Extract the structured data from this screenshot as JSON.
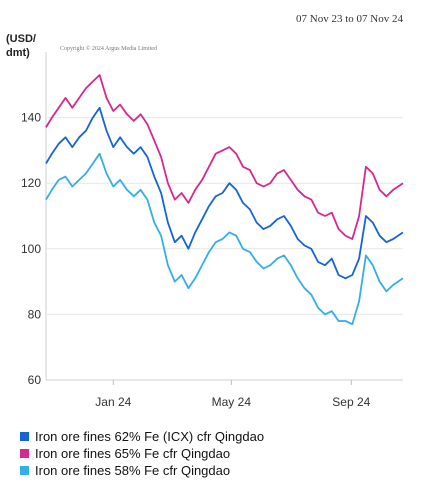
{
  "date_range": "07 Nov 23 to 07 Nov 24",
  "copyright": "Copyright © 2024 Argus Media Limited",
  "chart_data": {
    "type": "line",
    "ylabel": "(USD/\ndmt)",
    "ylim": [
      60,
      160
    ],
    "y_ticks": [
      60,
      80,
      100,
      120,
      140
    ],
    "x_ticks": [
      {
        "label": "Jan 24",
        "date": "2024-01-15"
      },
      {
        "label": "May 24",
        "date": "2024-05-15"
      },
      {
        "label": "Sep 24",
        "date": "2024-09-15"
      }
    ],
    "xlim": [
      "2023-11-07",
      "2024-11-07"
    ],
    "grid": true,
    "legend": "bottom",
    "series": [
      {
        "name": "Iron ore fines 62% Fe (ICX) cfr Qingdao",
        "color": "#1565d8",
        "points": [
          [
            "2023-11-07",
            126
          ],
          [
            "2023-11-13",
            129
          ],
          [
            "2023-11-20",
            132
          ],
          [
            "2023-11-27",
            134
          ],
          [
            "2023-12-04",
            131
          ],
          [
            "2023-12-11",
            134
          ],
          [
            "2023-12-18",
            136
          ],
          [
            "2023-12-25",
            140
          ],
          [
            "2024-01-01",
            143
          ],
          [
            "2024-01-08",
            136
          ],
          [
            "2024-01-15",
            131
          ],
          [
            "2024-01-22",
            134
          ],
          [
            "2024-01-29",
            131
          ],
          [
            "2024-02-05",
            129
          ],
          [
            "2024-02-12",
            131
          ],
          [
            "2024-02-19",
            128
          ],
          [
            "2024-02-26",
            122
          ],
          [
            "2024-03-04",
            117
          ],
          [
            "2024-03-11",
            108
          ],
          [
            "2024-03-18",
            102
          ],
          [
            "2024-03-25",
            104
          ],
          [
            "2024-04-01",
            100
          ],
          [
            "2024-04-08",
            105
          ],
          [
            "2024-04-15",
            109
          ],
          [
            "2024-04-22",
            113
          ],
          [
            "2024-04-29",
            116
          ],
          [
            "2024-05-06",
            117
          ],
          [
            "2024-05-13",
            120
          ],
          [
            "2024-05-20",
            118
          ],
          [
            "2024-05-27",
            114
          ],
          [
            "2024-06-03",
            112
          ],
          [
            "2024-06-10",
            108
          ],
          [
            "2024-06-17",
            106
          ],
          [
            "2024-06-24",
            107
          ],
          [
            "2024-07-01",
            109
          ],
          [
            "2024-07-08",
            110
          ],
          [
            "2024-07-15",
            107
          ],
          [
            "2024-07-22",
            103
          ],
          [
            "2024-07-29",
            101
          ],
          [
            "2024-08-05",
            100
          ],
          [
            "2024-08-12",
            96
          ],
          [
            "2024-08-19",
            95
          ],
          [
            "2024-08-26",
            97
          ],
          [
            "2024-09-02",
            92
          ],
          [
            "2024-09-09",
            91
          ],
          [
            "2024-09-16",
            92
          ],
          [
            "2024-09-23",
            97
          ],
          [
            "2024-09-30",
            110
          ],
          [
            "2024-10-07",
            108
          ],
          [
            "2024-10-14",
            104
          ],
          [
            "2024-10-21",
            102
          ],
          [
            "2024-10-28",
            103
          ],
          [
            "2024-11-07",
            105
          ]
        ]
      },
      {
        "name": "Iron ore fines 65% Fe cfr Qingdao",
        "color": "#d6288f",
        "points": [
          [
            "2023-11-07",
            137
          ],
          [
            "2023-11-13",
            140
          ],
          [
            "2023-11-20",
            143
          ],
          [
            "2023-11-27",
            146
          ],
          [
            "2023-12-04",
            143
          ],
          [
            "2023-12-11",
            146
          ],
          [
            "2023-12-18",
            149
          ],
          [
            "2023-12-25",
            151
          ],
          [
            "2024-01-01",
            153
          ],
          [
            "2024-01-08",
            146
          ],
          [
            "2024-01-15",
            142
          ],
          [
            "2024-01-22",
            144
          ],
          [
            "2024-01-29",
            141
          ],
          [
            "2024-02-05",
            139
          ],
          [
            "2024-02-12",
            141
          ],
          [
            "2024-02-19",
            138
          ],
          [
            "2024-02-26",
            133
          ],
          [
            "2024-03-04",
            128
          ],
          [
            "2024-03-11",
            120
          ],
          [
            "2024-03-18",
            115
          ],
          [
            "2024-03-25",
            117
          ],
          [
            "2024-04-01",
            114
          ],
          [
            "2024-04-08",
            118
          ],
          [
            "2024-04-15",
            121
          ],
          [
            "2024-04-22",
            125
          ],
          [
            "2024-04-29",
            129
          ],
          [
            "2024-05-06",
            130
          ],
          [
            "2024-05-13",
            131
          ],
          [
            "2024-05-20",
            129
          ],
          [
            "2024-05-27",
            125
          ],
          [
            "2024-06-03",
            124
          ],
          [
            "2024-06-10",
            120
          ],
          [
            "2024-06-17",
            119
          ],
          [
            "2024-06-24",
            120
          ],
          [
            "2024-07-01",
            123
          ],
          [
            "2024-07-08",
            124
          ],
          [
            "2024-07-15",
            121
          ],
          [
            "2024-07-22",
            118
          ],
          [
            "2024-07-29",
            116
          ],
          [
            "2024-08-05",
            115
          ],
          [
            "2024-08-12",
            111
          ],
          [
            "2024-08-19",
            110
          ],
          [
            "2024-08-26",
            111
          ],
          [
            "2024-09-02",
            106
          ],
          [
            "2024-09-09",
            104
          ],
          [
            "2024-09-16",
            103
          ],
          [
            "2024-09-23",
            110
          ],
          [
            "2024-09-30",
            125
          ],
          [
            "2024-10-07",
            123
          ],
          [
            "2024-10-14",
            118
          ],
          [
            "2024-10-21",
            116
          ],
          [
            "2024-10-28",
            118
          ],
          [
            "2024-11-07",
            120
          ]
        ]
      },
      {
        "name": "Iron ore fines 58% Fe cfr Qingdao",
        "color": "#33aee8",
        "points": [
          [
            "2023-11-07",
            115
          ],
          [
            "2023-11-13",
            118
          ],
          [
            "2023-11-20",
            121
          ],
          [
            "2023-11-27",
            122
          ],
          [
            "2023-12-04",
            119
          ],
          [
            "2023-12-11",
            121
          ],
          [
            "2023-12-18",
            123
          ],
          [
            "2023-12-25",
            126
          ],
          [
            "2024-01-01",
            129
          ],
          [
            "2024-01-08",
            123
          ],
          [
            "2024-01-15",
            119
          ],
          [
            "2024-01-22",
            121
          ],
          [
            "2024-01-29",
            118
          ],
          [
            "2024-02-05",
            116
          ],
          [
            "2024-02-12",
            118
          ],
          [
            "2024-02-19",
            115
          ],
          [
            "2024-02-26",
            108
          ],
          [
            "2024-03-04",
            104
          ],
          [
            "2024-03-11",
            95
          ],
          [
            "2024-03-18",
            90
          ],
          [
            "2024-03-25",
            92
          ],
          [
            "2024-04-01",
            88
          ],
          [
            "2024-04-08",
            91
          ],
          [
            "2024-04-15",
            95
          ],
          [
            "2024-04-22",
            99
          ],
          [
            "2024-04-29",
            102
          ],
          [
            "2024-05-06",
            103
          ],
          [
            "2024-05-13",
            105
          ],
          [
            "2024-05-20",
            104
          ],
          [
            "2024-05-27",
            100
          ],
          [
            "2024-06-03",
            99
          ],
          [
            "2024-06-10",
            96
          ],
          [
            "2024-06-17",
            94
          ],
          [
            "2024-06-24",
            95
          ],
          [
            "2024-07-01",
            97
          ],
          [
            "2024-07-08",
            98
          ],
          [
            "2024-07-15",
            95
          ],
          [
            "2024-07-22",
            91
          ],
          [
            "2024-07-29",
            88
          ],
          [
            "2024-08-05",
            86
          ],
          [
            "2024-08-12",
            82
          ],
          [
            "2024-08-19",
            80
          ],
          [
            "2024-08-26",
            81
          ],
          [
            "2024-09-02",
            78
          ],
          [
            "2024-09-09",
            78
          ],
          [
            "2024-09-16",
            77
          ],
          [
            "2024-09-23",
            84
          ],
          [
            "2024-09-30",
            98
          ],
          [
            "2024-10-07",
            95
          ],
          [
            "2024-10-14",
            90
          ],
          [
            "2024-10-21",
            87
          ],
          [
            "2024-10-28",
            89
          ],
          [
            "2024-11-07",
            91
          ]
        ]
      }
    ]
  }
}
